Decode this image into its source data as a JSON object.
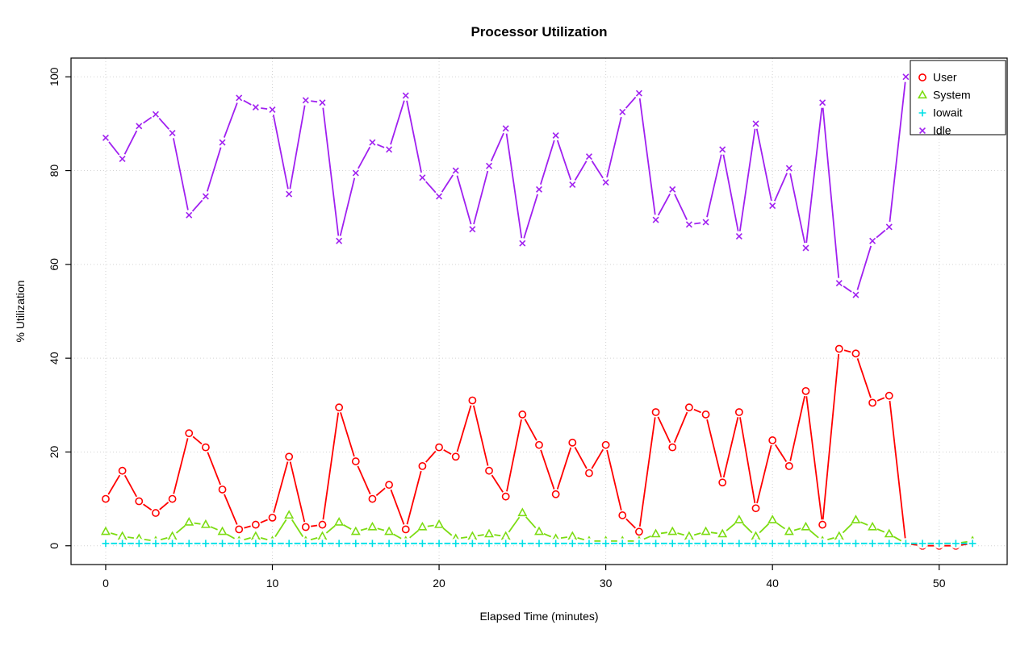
{
  "chart_data": {
    "type": "line",
    "title": "Processor Utilization",
    "xlabel": "Elapsed Time (minutes)",
    "ylabel": "% Utilization",
    "xlim": [
      0,
      52
    ],
    "ylim": [
      0,
      100
    ],
    "xticks": [
      0,
      10,
      20,
      30,
      40,
      50
    ],
    "yticks": [
      0,
      20,
      40,
      60,
      80,
      100
    ],
    "grid": true,
    "grid_color": "#d3d3d3",
    "legend_position": "top-right",
    "x": [
      0,
      1,
      2,
      3,
      4,
      5,
      6,
      7,
      8,
      9,
      10,
      11,
      12,
      13,
      14,
      15,
      16,
      17,
      18,
      19,
      20,
      21,
      22,
      23,
      24,
      25,
      26,
      27,
      28,
      29,
      30,
      31,
      32,
      33,
      34,
      35,
      36,
      37,
      38,
      39,
      40,
      41,
      42,
      43,
      44,
      45,
      46,
      47,
      48,
      49,
      50,
      51,
      52
    ],
    "series": [
      {
        "name": "User",
        "color": "#ff0000",
        "marker": "circle",
        "values": [
          10,
          16,
          9.5,
          7,
          10,
          24,
          21,
          12,
          3.5,
          4.5,
          6,
          19,
          4,
          4.5,
          29.5,
          18,
          10,
          13,
          3.5,
          17,
          21,
          19,
          31,
          16,
          10.5,
          28,
          21.5,
          11,
          22,
          15.5,
          21.5,
          6.5,
          3,
          28.5,
          21,
          29.5,
          28,
          13.5,
          28.5,
          8,
          22.5,
          17,
          33,
          4.5,
          42,
          41,
          30.5,
          32,
          0.5,
          0,
          0,
          0,
          0.5
        ]
      },
      {
        "name": "System",
        "color": "#7cdc12",
        "marker": "triangle",
        "values": [
          3,
          2,
          1.5,
          1,
          2,
          5,
          4.5,
          3,
          1,
          2,
          1,
          6.5,
          1,
          2,
          5,
          3,
          4,
          3,
          1,
          4,
          4.5,
          1.5,
          2,
          2.5,
          2,
          7,
          3,
          1.5,
          2,
          1,
          1,
          1,
          1,
          2.5,
          3,
          2,
          3,
          2.5,
          5.5,
          2,
          5.5,
          3,
          4,
          1,
          2,
          5.5,
          4,
          2.5,
          0.5,
          0.5,
          0.5,
          0.5,
          1
        ]
      },
      {
        "name": "Iowait",
        "color": "#00e0e6",
        "marker": "plus",
        "values": [
          0.5,
          0.5,
          0.5,
          0.5,
          0.5,
          0.5,
          0.5,
          0.5,
          0.5,
          0.5,
          0.5,
          0.5,
          0.5,
          0.5,
          0.5,
          0.5,
          0.5,
          0.5,
          0.5,
          0.5,
          0.5,
          0.5,
          0.5,
          0.5,
          0.5,
          0.5,
          0.5,
          0.5,
          0.5,
          0.5,
          0.5,
          0.5,
          0.5,
          0.5,
          0.5,
          0.5,
          0.5,
          0.5,
          0.5,
          0.5,
          0.5,
          0.5,
          0.5,
          0.5,
          0.5,
          0.5,
          0.5,
          0.5,
          0.5,
          0.5,
          0.5,
          0.5,
          0.5
        ]
      },
      {
        "name": "Idle",
        "color": "#a020f0",
        "marker": "x",
        "values": [
          87,
          82.5,
          89.5,
          92,
          88,
          70.5,
          74.5,
          86,
          95.5,
          93.5,
          93,
          75,
          95,
          94.5,
          65,
          79.5,
          86,
          84.5,
          96,
          78.5,
          74.5,
          80,
          67.5,
          81,
          89,
          64.5,
          76,
          87.5,
          77,
          83,
          77.5,
          92.5,
          96.5,
          69.5,
          76,
          68.5,
          69,
          84.5,
          66,
          90,
          72.5,
          80.5,
          63.5,
          94.5,
          56,
          53.5,
          65,
          68,
          100,
          100,
          100,
          100,
          99.5
        ]
      }
    ]
  }
}
